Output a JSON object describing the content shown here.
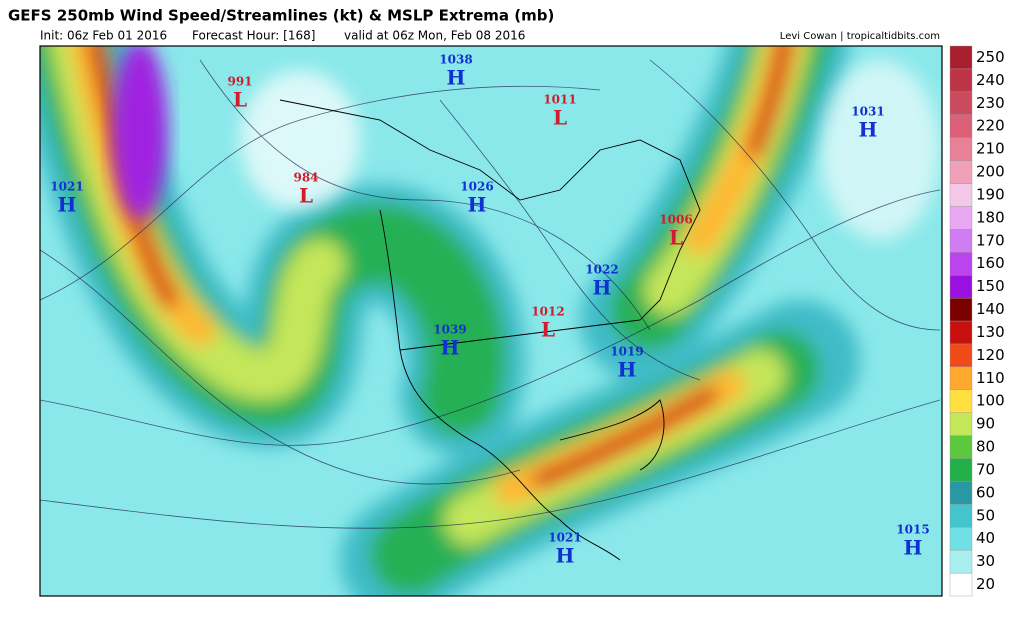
{
  "header": {
    "title": "GEFS 250mb Wind Speed/Streamlines (kt) & MSLP Extrema (mb)",
    "init": "Init: 06z Feb 01 2016",
    "forecast_hour": "Forecast Hour: [168]",
    "valid": "valid at 06z Mon, Feb 08 2016",
    "credit": "Levi Cowan | tropicaltidbits.com"
  },
  "colorbar": {
    "labels": [
      20,
      30,
      40,
      50,
      60,
      70,
      80,
      90,
      100,
      110,
      120,
      130,
      140,
      150,
      160,
      170,
      180,
      190,
      200,
      210,
      220,
      230,
      240,
      250
    ],
    "colors": [
      "#ffffff",
      "#a8f0f0",
      "#6fe0e4",
      "#46c4cc",
      "#2a98a4",
      "#23b048",
      "#5cc83c",
      "#c4e65a",
      "#ffe040",
      "#ffa830",
      "#f04a18",
      "#c81010",
      "#7a0000",
      "#9a10e0",
      "#bb44ee",
      "#d07cf2",
      "#e8a8f4",
      "#f4c8e8",
      "#f0a0b8",
      "#e88098",
      "#dc6078",
      "#cc4a5e",
      "#bc3446",
      "#a82030"
    ]
  },
  "pressure_centers": [
    {
      "letter": "L",
      "value": 991
    },
    {
      "letter": "H",
      "value": 1038
    },
    {
      "letter": "L",
      "value": 1011
    },
    {
      "letter": "H",
      "value": 1031
    },
    {
      "letter": "H",
      "value": 1021
    },
    {
      "letter": "L",
      "value": 984
    },
    {
      "letter": "H",
      "value": 1026
    },
    {
      "letter": "L",
      "value": 1006
    },
    {
      "letter": "H",
      "value": 1022
    },
    {
      "letter": "L",
      "value": 1012
    },
    {
      "letter": "H",
      "value": 1039
    },
    {
      "letter": "H",
      "value": 1019
    },
    {
      "letter": "H",
      "value": 1021
    },
    {
      "letter": "H",
      "value": 1015
    }
  ]
}
